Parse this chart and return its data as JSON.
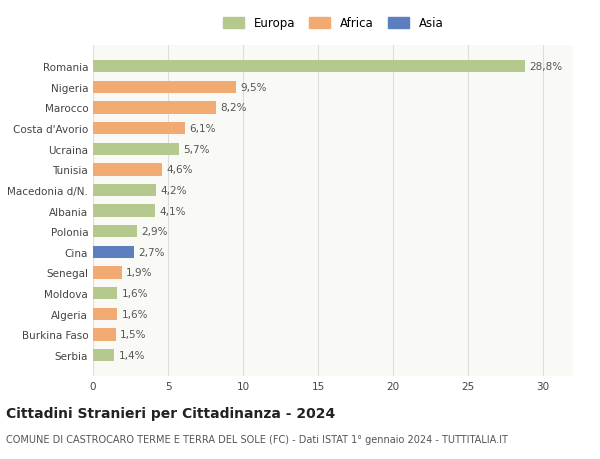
{
  "categories": [
    "Romania",
    "Nigeria",
    "Marocco",
    "Costa d'Avorio",
    "Ucraina",
    "Tunisia",
    "Macedonia d/N.",
    "Albania",
    "Polonia",
    "Cina",
    "Senegal",
    "Moldova",
    "Algeria",
    "Burkina Faso",
    "Serbia"
  ],
  "values": [
    28.8,
    9.5,
    8.2,
    6.1,
    5.7,
    4.6,
    4.2,
    4.1,
    2.9,
    2.7,
    1.9,
    1.6,
    1.6,
    1.5,
    1.4
  ],
  "labels": [
    "28,8%",
    "9,5%",
    "8,2%",
    "6,1%",
    "5,7%",
    "4,6%",
    "4,2%",
    "4,1%",
    "2,9%",
    "2,7%",
    "1,9%",
    "1,6%",
    "1,6%",
    "1,5%",
    "1,4%"
  ],
  "continents": [
    "Europa",
    "Africa",
    "Africa",
    "Africa",
    "Europa",
    "Africa",
    "Europa",
    "Europa",
    "Europa",
    "Asia",
    "Africa",
    "Europa",
    "Africa",
    "Africa",
    "Europa"
  ],
  "colors": {
    "Europa": "#b5c98e",
    "Africa": "#f0aa72",
    "Asia": "#5b7fbf"
  },
  "title": "Cittadini Stranieri per Cittadinanza - 2024",
  "subtitle": "COMUNE DI CASTROCARO TERME E TERRA DEL SOLE (FC) - Dati ISTAT 1° gennaio 2024 - TUTTITALIA.IT",
  "xlim": [
    0,
    32
  ],
  "xticks": [
    0,
    5,
    10,
    15,
    20,
    25,
    30
  ],
  "background_color": "#ffffff",
  "plot_bg_color": "#f9f9f6",
  "grid_color": "#dddddd",
  "bar_height": 0.6,
  "title_fontsize": 10,
  "subtitle_fontsize": 7,
  "label_fontsize": 7.5,
  "tick_fontsize": 7.5,
  "legend_fontsize": 8.5
}
